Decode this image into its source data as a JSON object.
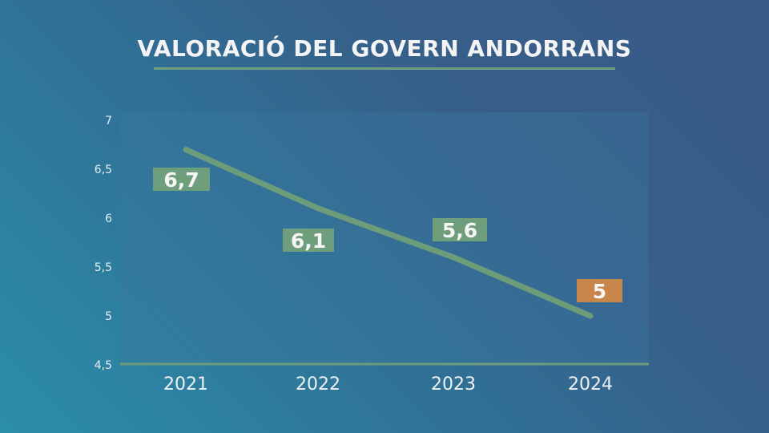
{
  "chart_data": {
    "type": "line",
    "title": "VALORACIÓ DEL GOVERN ANDORRANS",
    "categories": [
      "2021",
      "2022",
      "2023",
      "2024"
    ],
    "values": [
      6.7,
      6.1,
      5.6,
      5.0
    ],
    "value_labels": [
      "6,7",
      "6,1",
      "5,6",
      "5"
    ],
    "ylim": [
      4.5,
      7
    ],
    "yticks": [
      4.5,
      5,
      5.5,
      6,
      6.5,
      7
    ],
    "ytick_labels": [
      "4,5",
      "5",
      "5,5",
      "6",
      "6,5",
      "7"
    ],
    "xlabel": "",
    "ylabel": "",
    "grid": false,
    "colors": {
      "line": "#6d9c7a",
      "label": "#6e9e7c",
      "highlight": "#c9864a"
    }
  }
}
